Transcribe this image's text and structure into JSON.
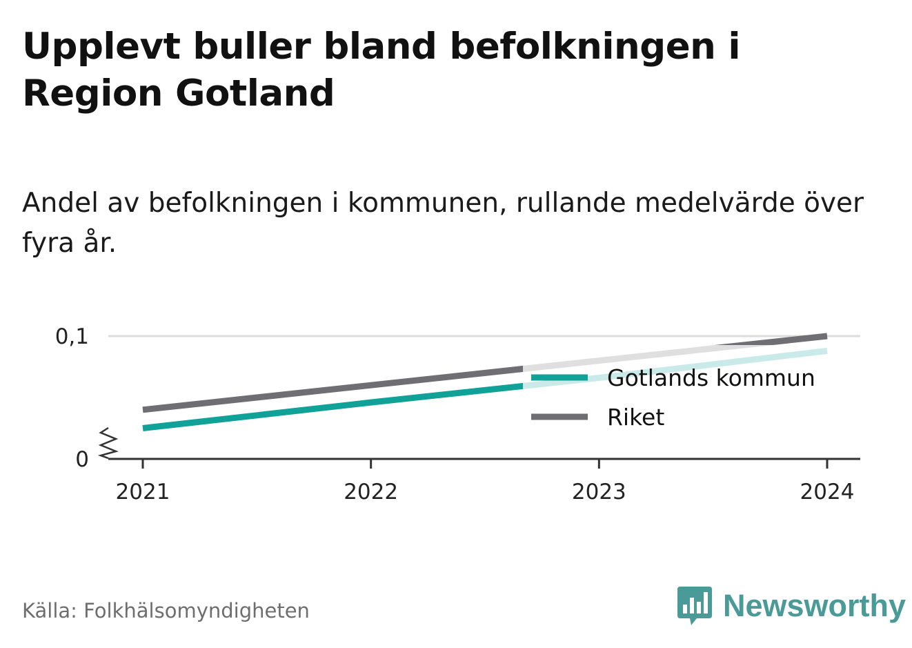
{
  "title": "Upplevt buller bland befolkningen i Region Gotland",
  "subtitle": "Andel av befolkningen i kommunen, rullande medelvärde över fyra år.",
  "source": "Källa: Folkhälsomyndigheten",
  "brand": {
    "name": "Newsworthy",
    "logo_icon": "bar-chart-speech-bubble-icon",
    "color": "#4a9a97"
  },
  "colors": {
    "gotland": "#10a199",
    "riket": "#6e6e73",
    "grid": "#dcdcdc",
    "axis": "#333333"
  },
  "chart_data": {
    "type": "line",
    "x": [
      "2021",
      "2022",
      "2023",
      "2024"
    ],
    "ylim": [
      0,
      0.1
    ],
    "y_ticks": [
      "0",
      "0,1"
    ],
    "y_axis_break": true,
    "grid": true,
    "legend_position": "right-middle",
    "series": [
      {
        "name": "Gotlands kommun",
        "color": "#10a199",
        "values": [
          0.025,
          0.046,
          0.066,
          0.088
        ]
      },
      {
        "name": "Riket",
        "color": "#6e6e73",
        "values": [
          0.04,
          0.06,
          0.08,
          0.1
        ]
      }
    ]
  }
}
